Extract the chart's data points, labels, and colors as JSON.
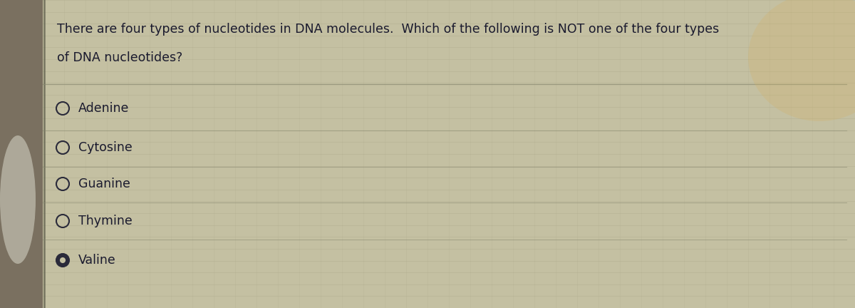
{
  "question_line1": "There are four types of nucleotides in DNA molecules.  Which of the following is NOT one of the four types",
  "question_line2": "of DNA nucleotides?",
  "options": [
    "Adenine",
    "Cytosine",
    "Guanine",
    "Thymine",
    "Valine"
  ],
  "selected_index": 4,
  "bg_color": "#b5b090",
  "panel_color": "#c8c4a8",
  "text_color": "#1a1a2e",
  "grid_color": "#9a9878",
  "font_size_question": 12.5,
  "font_size_options": 12.5,
  "figwidth": 12.0,
  "figheight": 4.32,
  "dpi": 100
}
